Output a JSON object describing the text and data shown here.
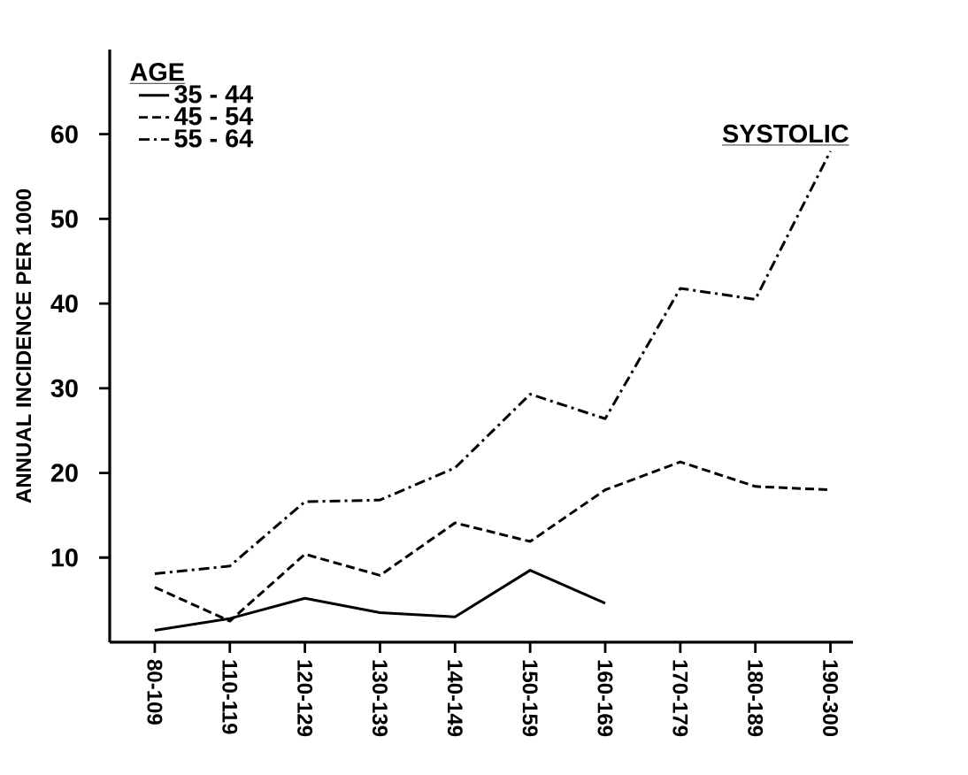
{
  "chart_data": {
    "type": "line",
    "ylabel": "ANNUAL INCIDENCE PER 1000",
    "legend_title": "AGE",
    "annotations": [
      "SYSTOLIC"
    ],
    "categories": [
      "80-109",
      "110-119",
      "120-129",
      "130-139",
      "140-149",
      "150-159",
      "160-169",
      "170-179",
      "180-189",
      "190-300"
    ],
    "series": [
      {
        "name": "35 - 44",
        "color": "#000000",
        "line_style": "solid",
        "values": [
          1.4,
          2.8,
          5.2,
          3.5,
          3.0,
          8.5,
          4.6,
          null,
          null,
          null
        ]
      },
      {
        "name": "45 - 54",
        "color": "#000000",
        "line_style": "dashed",
        "values": [
          6.5,
          2.5,
          10.4,
          7.9,
          14.1,
          11.9,
          18.0,
          21.3,
          18.4,
          18.0
        ]
      },
      {
        "name": "55 - 64",
        "color": "#000000",
        "line_style": "dashdot",
        "values": [
          8.1,
          9.0,
          16.6,
          16.8,
          20.6,
          29.3,
          26.4,
          41.8,
          40.5,
          58
        ]
      }
    ],
    "ylim": [
      0,
      70
    ],
    "yticks": [
      10,
      20,
      30,
      40,
      50,
      60
    ],
    "grid": false,
    "legend": "top left",
    "marker": "none"
  }
}
